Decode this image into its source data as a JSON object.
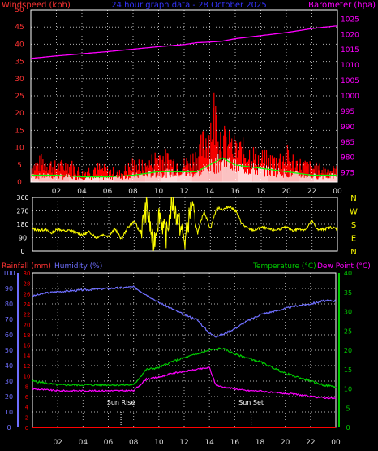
{
  "header": {
    "left": "Windspeed (kph)",
    "center": "24 hour graph data - 28 October 2025",
    "right": "Barometer (hpa)"
  },
  "colors": {
    "wind": "#ff0000",
    "gust": "#ff2a2a",
    "wind_avg": "#00ff00",
    "wind_light": "#ffffff",
    "barometer": "#ff00ff",
    "direction": "#ffff00",
    "rain": "#ff0000",
    "humidity": "#6f6fff",
    "temperature": "#00cc00",
    "dewpoint": "#ff00ff",
    "axis_left": "#ff3333",
    "axis_right": "#ff00ff",
    "grid": "#ffffff",
    "frame": "#ffffff"
  },
  "time_ticks": [
    "02",
    "04",
    "06",
    "08",
    "10",
    "12",
    "14",
    "16",
    "18",
    "20",
    "22",
    "00"
  ],
  "chart_data": [
    {
      "id": "wind",
      "type": "line",
      "left_axis": {
        "label": "Windspeed (kph)",
        "ticks": [
          "0",
          "5",
          "10",
          "15",
          "20",
          "25",
          "30",
          "35",
          "40",
          "45",
          "50"
        ],
        "range": [
          0,
          50
        ]
      },
      "right_axis": {
        "label": "Barometer (hpa)",
        "ticks": [
          "975",
          "980",
          "985",
          "990",
          "995",
          "1000",
          "1005",
          "1010",
          "1015",
          "1020",
          "1025"
        ],
        "range": [
          972,
          1028
        ]
      },
      "barometer_series": {
        "x": [
          0,
          2,
          4,
          6,
          8,
          10,
          12,
          13,
          14,
          15,
          16,
          18,
          20,
          22,
          24
        ],
        "values": [
          1012.2,
          1013.0,
          1013.7,
          1014.4,
          1015.2,
          1016.0,
          1016.7,
          1017.3,
          1017.5,
          1017.8,
          1018.6,
          1019.6,
          1020.6,
          1021.9,
          1022.8
        ]
      },
      "gust_series": {
        "x": [
          0,
          1,
          2,
          3,
          4,
          5,
          6,
          7,
          8,
          9,
          10,
          11,
          12,
          13,
          14,
          14.3,
          15,
          16,
          17,
          18,
          19,
          20,
          21,
          22,
          23,
          24
        ],
        "values": [
          5,
          7,
          5,
          6,
          3,
          5,
          4,
          3,
          6,
          5,
          9,
          7,
          6,
          9,
          17,
          24,
          14,
          11,
          10,
          8,
          7,
          9,
          6,
          5,
          4,
          4
        ]
      },
      "avg_series": {
        "x": [
          0,
          2,
          4,
          6,
          8,
          10,
          12,
          13,
          14,
          15,
          16,
          18,
          20,
          22,
          24
        ],
        "values": [
          2,
          2,
          1.5,
          1.5,
          2,
          3,
          3,
          3,
          5,
          7,
          5,
          4,
          3,
          2,
          2
        ]
      }
    },
    {
      "id": "direction",
      "type": "line",
      "left_axis": {
        "ticks": [
          "0",
          "90",
          "180",
          "270",
          "360"
        ],
        "range": [
          0,
          360
        ]
      },
      "right_axis": {
        "ticks": [
          "N",
          "W",
          "S",
          "E",
          "N"
        ]
      },
      "series": {
        "x": [
          0,
          0.5,
          1,
          1.5,
          2,
          2.5,
          3,
          3.5,
          4,
          4.5,
          5,
          5.5,
          6,
          6.5,
          7,
          7.5,
          8,
          8.5,
          9,
          9.5,
          10,
          10.5,
          11,
          11.5,
          12,
          12.5,
          13,
          13.5,
          14,
          14.5,
          15,
          15.5,
          16,
          16.5,
          17,
          17.5,
          18,
          18.5,
          19,
          19.5,
          20,
          20.5,
          21,
          21.5,
          22,
          22.5,
          23,
          23.5,
          24
        ],
        "values": [
          150,
          140,
          145,
          120,
          150,
          135,
          140,
          120,
          110,
          130,
          90,
          110,
          100,
          150,
          80,
          160,
          200,
          120,
          300,
          40,
          260,
          90,
          330,
          200,
          60,
          310,
          120,
          270,
          150,
          290,
          280,
          300,
          270,
          180,
          150,
          140,
          160,
          150,
          140,
          150,
          160,
          140,
          150,
          145,
          200,
          140,
          150,
          160,
          150
        ]
      }
    },
    {
      "id": "temp_hum",
      "type": "line",
      "header_left": [
        "Rainfall (mm)",
        "Humidity (%)"
      ],
      "header_right": [
        "Temperature (°C)",
        "Dew Point (°C)"
      ],
      "humidity_axis": {
        "ticks": [
          "0",
          "10",
          "20",
          "30",
          "40",
          "50",
          "60",
          "70",
          "80",
          "90",
          "100"
        ],
        "range": [
          0,
          100
        ]
      },
      "rain_axis": {
        "ticks": [
          "0",
          "2",
          "4",
          "6",
          "8",
          "10",
          "12",
          "14",
          "16",
          "18",
          "20",
          "22",
          "24",
          "26",
          "28",
          "30"
        ],
        "range": [
          0,
          30
        ]
      },
      "temp_axis": {
        "ticks": [
          "0",
          "5",
          "10",
          "15",
          "20",
          "25",
          "30",
          "35",
          "40"
        ],
        "range": [
          0,
          40
        ]
      },
      "humidity_series": {
        "x": [
          0,
          1,
          2,
          4,
          6,
          8,
          9,
          10,
          11,
          12,
          13,
          14,
          14.5,
          15,
          16,
          17,
          18,
          19,
          20,
          21,
          22,
          23,
          24
        ],
        "values": [
          85,
          87,
          88,
          89,
          90,
          91,
          86,
          81,
          77,
          73,
          70,
          61,
          59,
          60,
          64,
          69,
          73,
          75,
          77,
          79,
          80,
          82,
          82
        ]
      },
      "temperature_series": {
        "x": [
          0,
          2,
          4,
          6,
          8,
          9,
          10,
          11,
          12,
          13,
          14,
          15,
          16,
          17,
          18,
          19,
          20,
          21,
          22,
          23,
          24
        ],
        "values": [
          12,
          11,
          11,
          11,
          11,
          15,
          15.5,
          17,
          18,
          19,
          20,
          20.5,
          19,
          18,
          17,
          15.5,
          14,
          13,
          12,
          11,
          10.5
        ]
      },
      "dewpoint_series": {
        "x": [
          0,
          2,
          4,
          6,
          8,
          9,
          10,
          11,
          12,
          13,
          14,
          14.5,
          15,
          16,
          17,
          18,
          19,
          20,
          21,
          22,
          23,
          24
        ],
        "values": [
          10,
          9.5,
          9.5,
          9.5,
          9.5,
          12.5,
          13,
          14,
          14.5,
          15,
          15.5,
          11,
          10.5,
          10,
          9.5,
          9.5,
          9,
          8.8,
          8.5,
          8,
          7.7,
          7.5
        ]
      },
      "rain_series": {
        "x": [
          0,
          24
        ],
        "values": [
          0,
          0
        ]
      },
      "markers": [
        {
          "label": "Sun Rise",
          "x": 7
        },
        {
          "label": "Sun Set",
          "x": 17.3
        }
      ]
    }
  ]
}
